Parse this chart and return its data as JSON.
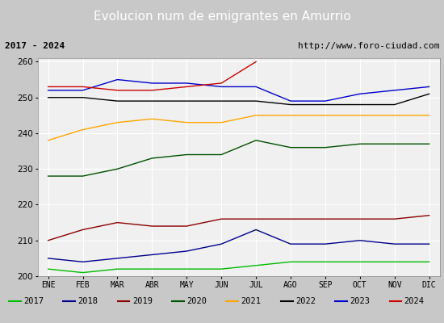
{
  "title": "Evolucion num de emigrantes en Amurrio",
  "subtitle_left": "2017 - 2024",
  "subtitle_right": "http://www.foro-ciudad.com",
  "months": [
    "ENE",
    "FEB",
    "MAR",
    "ABR",
    "MAY",
    "JUN",
    "JUL",
    "AGO",
    "SEP",
    "OCT",
    "NOV",
    "DIC"
  ],
  "ylim": [
    200,
    261
  ],
  "yticks": [
    200,
    210,
    220,
    230,
    240,
    250,
    260
  ],
  "series": {
    "2017": {
      "color": "#00bb00",
      "values": [
        202,
        201,
        202,
        202,
        202,
        202,
        203,
        204,
        204,
        204,
        204,
        204
      ]
    },
    "2018": {
      "color": "#00008b",
      "values": [
        205,
        204,
        205,
        206,
        207,
        209,
        213,
        209,
        209,
        210,
        209,
        209
      ]
    },
    "2019": {
      "color": "#8b0000",
      "values": [
        210,
        213,
        215,
        214,
        214,
        216,
        216,
        216,
        216,
        216,
        216,
        217
      ]
    },
    "2020": {
      "color": "#005000",
      "values": [
        228,
        228,
        230,
        233,
        234,
        234,
        238,
        236,
        236,
        237,
        237,
        237
      ]
    },
    "2021": {
      "color": "#ffa500",
      "values": [
        238,
        241,
        243,
        244,
        243,
        243,
        245,
        245,
        245,
        245,
        245,
        245
      ]
    },
    "2022": {
      "color": "#000000",
      "values": [
        250,
        250,
        249,
        249,
        249,
        249,
        249,
        248,
        248,
        248,
        248,
        251
      ]
    },
    "2023": {
      "color": "#0000cd",
      "values": [
        252,
        252,
        255,
        254,
        254,
        253,
        253,
        249,
        249,
        251,
        252,
        253
      ]
    },
    "2024": {
      "color": "#cc0000",
      "values": [
        253,
        253,
        252,
        252,
        253,
        254,
        260,
        null,
        null,
        null,
        null,
        null
      ]
    }
  },
  "title_bg_color": "#5b8dd9",
  "title_font_color": "white",
  "title_fontsize": 11,
  "subtitle_fontsize": 8,
  "plot_bg_color": "#f0f0f0",
  "grid_color": "#ffffff",
  "legend_fontsize": 7.5,
  "fig_bg_color": "#c8c8c8"
}
